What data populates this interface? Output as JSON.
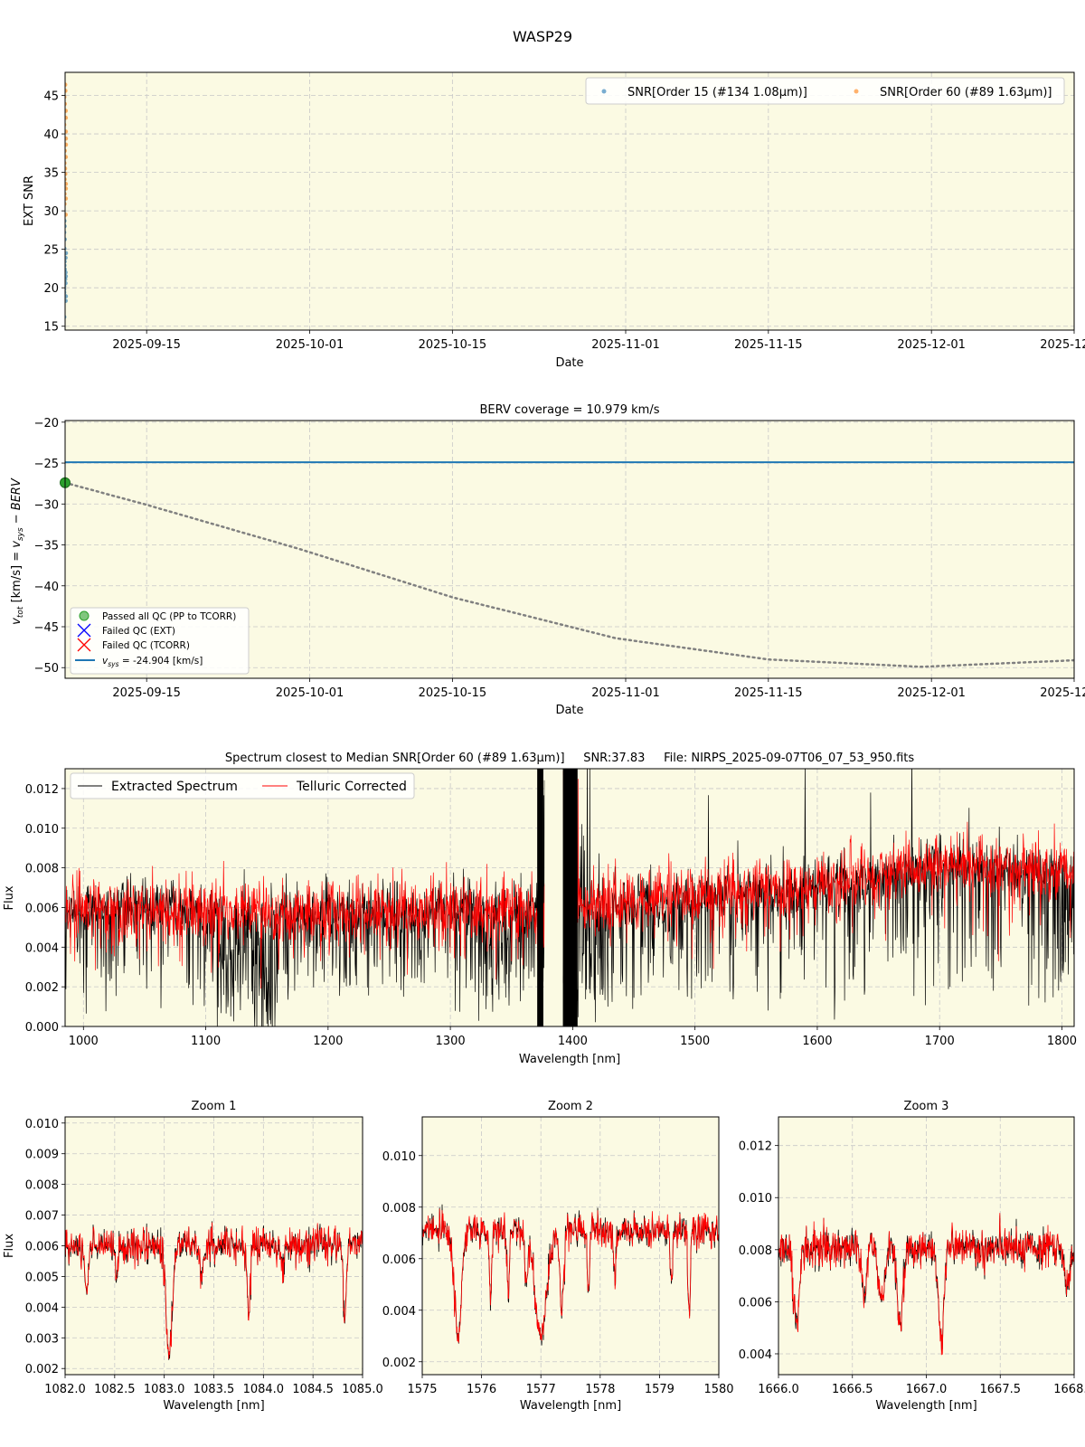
{
  "figure_title": "WASP29",
  "colors": {
    "panel_bg": "#fbfae3",
    "grid": "#c8c8c8",
    "snr_order15": "#1f77b4",
    "snr_order60": "#ff7f0e",
    "vsys_line": "#1f77b4",
    "berv_curve": "#808080",
    "passed_qc": "#2ca02c",
    "failed_ext": "#0000ff",
    "failed_tcorr": "#ff0000",
    "extracted": "#000000",
    "telluric": "#ff0000"
  },
  "chart_data": [
    {
      "type": "scatter",
      "id": "snr",
      "title": "",
      "xlabel": "Date",
      "ylabel": "EXT SNR",
      "x_tick_labels": [
        "2025-09-15",
        "2025-10-01",
        "2025-10-15",
        "2025-11-01",
        "2025-11-15",
        "2025-12-01",
        "2025-12-15"
      ],
      "xlim": [
        "2025-09-07",
        "2025-12-15"
      ],
      "ylim": [
        14.5,
        48
      ],
      "y_ticks": [
        15,
        20,
        25,
        30,
        35,
        40,
        45
      ],
      "legend": [
        "SNR[Order 15 (#134 1.08",
        "μm)]",
        "SNR[Order 60 (#89 1.63",
        "μm)]"
      ],
      "legend_position": "top-right",
      "series": [
        {
          "name": "SNR[Order 15 (#134 1.08μm)]",
          "x_date": "2025-09-07",
          "y": [
            16.2,
            18.3,
            18.9,
            19.4,
            19.8,
            20.2,
            20.6,
            21.1,
            21.5,
            22.0,
            22.4,
            22.9,
            23.4,
            23.9,
            24.5,
            25.1,
            26.3,
            27.2,
            28.0,
            28.7
          ]
        },
        {
          "name": "SNR[Order 60 (#89 1.63μm)]",
          "x_date": "2025-09-07",
          "y": [
            29.5,
            30.9,
            31.6,
            32.2,
            32.9,
            33.5,
            34.1,
            34.8,
            35.5,
            36.2,
            37.0,
            37.8,
            38.6,
            39.4,
            40.3,
            41.2,
            42.1,
            43.0,
            43.9,
            44.8,
            45.6,
            46.4
          ]
        }
      ]
    },
    {
      "type": "line",
      "id": "berv",
      "title": "BERV coverage = 10.979 km/s",
      "xlabel": "Date",
      "ylabel_parts": [
        "v",
        "tot",
        " [km/s] = ",
        "v",
        "sys",
        " − BERV"
      ],
      "x_tick_labels": [
        "2025-09-15",
        "2025-10-01",
        "2025-10-15",
        "2025-11-01",
        "2025-11-15",
        "2025-12-01",
        "2025-12-15"
      ],
      "xlim": [
        "2025-09-07",
        "2025-12-15"
      ],
      "ylim": [
        -51.3,
        -19.8
      ],
      "y_ticks": [
        -20,
        -25,
        -30,
        -35,
        -40,
        -45,
        -50
      ],
      "vsys": -24.904,
      "berv_curve": {
        "x_dates": [
          "2025-09-07",
          "2025-09-15",
          "2025-09-30",
          "2025-10-15",
          "2025-10-31",
          "2025-11-15",
          "2025-11-30",
          "2025-12-15"
        ],
        "y": [
          -27.4,
          -30.1,
          -35.5,
          -41.4,
          -46.4,
          -49.0,
          -49.9,
          -49.1
        ]
      },
      "passed_qc_point": {
        "x_date": "2025-09-07",
        "y": -27.4
      },
      "legend": {
        "passed": "Passed all QC (PP to TCORR)",
        "failed_ext": "Failed QC (EXT)",
        "failed_tcorr": "Failed QC (TCORR)",
        "vsys_v": "v",
        "vsys_sub": "sys",
        "vsys_rest": " = -24.904 [km/s]"
      },
      "legend_position": "bottom-left"
    },
    {
      "type": "line",
      "id": "spectrum",
      "title": "Spectrum closest to Median SNR[Order 60 (#89 1.63μm)]     SNR:37.83     File: NIRPS_2025-09-07T06_07_53_950.fits",
      "xlabel": "Wavelength [nm]",
      "ylabel": "Flux",
      "xlim": [
        985,
        1810
      ],
      "ylim": [
        0.0,
        0.013
      ],
      "x_ticks": [
        1000,
        1100,
        1200,
        1300,
        1400,
        1500,
        1600,
        1700,
        1800
      ],
      "y_ticks": [
        0.0,
        0.002,
        0.004,
        0.006,
        0.008,
        0.01,
        0.012
      ],
      "y_tick_labels": [
        "0.000",
        "0.002",
        "0.004",
        "0.006",
        "0.008",
        "0.010",
        "0.012"
      ],
      "series": [
        {
          "name": "Extracted Spectrum",
          "continuum_x": [
            985,
            1100,
            1200,
            1300,
            1350,
            1420,
            1500,
            1600,
            1700,
            1810
          ],
          "continuum_y": [
            0.006,
            0.0058,
            0.0057,
            0.0059,
            0.006,
            0.0062,
            0.0066,
            0.007,
            0.0082,
            0.0077
          ]
        },
        {
          "name": "Telluric Corrected",
          "continuum_x": [
            985,
            1100,
            1200,
            1300,
            1350,
            1420,
            1500,
            1600,
            1700,
            1810
          ],
          "continuum_y": [
            0.006,
            0.0058,
            0.0057,
            0.0059,
            0.006,
            0.0062,
            0.0066,
            0.007,
            0.0082,
            0.0077
          ]
        }
      ],
      "gap_nm": [
        1377,
        1392
      ],
      "legend_position": "top-left"
    },
    {
      "type": "line",
      "id": "zoom1",
      "title": "Zoom 1",
      "xlabel": "Wavelength [nm]",
      "ylabel": "Flux",
      "xlim": [
        1082.0,
        1085.0
      ],
      "ylim": [
        0.0018,
        0.0102
      ],
      "x_ticks": [
        1082.0,
        1082.5,
        1083.0,
        1083.5,
        1084.0,
        1084.5,
        1085.0
      ],
      "x_tick_labels": [
        "1082.0",
        "1082.5",
        "1083.0",
        "1083.5",
        "1084.0",
        "1084.5",
        "1085.0"
      ],
      "y_ticks": [
        0.002,
        0.003,
        0.004,
        0.005,
        0.006,
        0.007,
        0.008,
        0.009,
        0.01
      ],
      "y_tick_labels": [
        "0.002",
        "0.003",
        "0.004",
        "0.005",
        "0.006",
        "0.007",
        "0.008",
        "0.009",
        "0.010"
      ],
      "continuum": 0.006,
      "lines": [
        {
          "x": 1082.22,
          "depth": 0.0016,
          "w": 0.018
        },
        {
          "x": 1082.52,
          "depth": 0.001,
          "w": 0.015
        },
        {
          "x": 1083.05,
          "depth": 0.0035,
          "w": 0.03
        },
        {
          "x": 1083.38,
          "depth": 0.001,
          "w": 0.02
        },
        {
          "x": 1083.85,
          "depth": 0.0021,
          "w": 0.015
        },
        {
          "x": 1084.2,
          "depth": 0.0008,
          "w": 0.015
        },
        {
          "x": 1084.82,
          "depth": 0.0024,
          "w": 0.015
        }
      ]
    },
    {
      "type": "line",
      "id": "zoom2",
      "title": "Zoom 2",
      "xlabel": "Wavelength [nm]",
      "ylabel": "",
      "xlim": [
        1575,
        1580
      ],
      "ylim": [
        0.0015,
        0.0115
      ],
      "x_ticks": [
        1575,
        1576,
        1577,
        1578,
        1579,
        1580
      ],
      "x_tick_labels": [
        "1575",
        "1576",
        "1577",
        "1578",
        "1579",
        "1580"
      ],
      "y_ticks": [
        0.002,
        0.004,
        0.006,
        0.008,
        0.01
      ],
      "y_tick_labels": [
        "0.002",
        "0.004",
        "0.006",
        "0.008",
        "0.010"
      ],
      "continuum": 0.0071,
      "lines": [
        {
          "x": 1575.6,
          "depth": 0.004,
          "w": 0.06
        },
        {
          "x": 1576.15,
          "depth": 0.0028,
          "w": 0.02
        },
        {
          "x": 1576.45,
          "depth": 0.0025,
          "w": 0.02
        },
        {
          "x": 1576.75,
          "depth": 0.0022,
          "w": 0.02
        },
        {
          "x": 1577.0,
          "depth": 0.004,
          "w": 0.1
        },
        {
          "x": 1577.35,
          "depth": 0.0032,
          "w": 0.03
        },
        {
          "x": 1577.8,
          "depth": 0.0025,
          "w": 0.02
        },
        {
          "x": 1578.25,
          "depth": 0.002,
          "w": 0.02
        },
        {
          "x": 1579.2,
          "depth": 0.002,
          "w": 0.02
        },
        {
          "x": 1579.5,
          "depth": 0.0032,
          "w": 0.02
        }
      ]
    },
    {
      "type": "line",
      "id": "zoom3",
      "title": "Zoom 3",
      "xlabel": "Wavelength [nm]",
      "ylabel": "",
      "xlim": [
        1666.0,
        1668.0
      ],
      "ylim": [
        0.0032,
        0.0131
      ],
      "x_ticks": [
        1666.0,
        1666.5,
        1667.0,
        1667.5,
        1668.0
      ],
      "x_tick_labels": [
        "1666.0",
        "1666.5",
        "1667.0",
        "1667.5",
        "1668.0"
      ],
      "y_ticks": [
        0.004,
        0.006,
        0.008,
        0.01,
        0.012
      ],
      "y_tick_labels": [
        "0.004",
        "0.006",
        "0.008",
        "0.010",
        "0.012"
      ],
      "continuum": 0.0081,
      "lines": [
        {
          "x": 1666.12,
          "depth": 0.003,
          "w": 0.02
        },
        {
          "x": 1666.58,
          "depth": 0.002,
          "w": 0.015
        },
        {
          "x": 1666.7,
          "depth": 0.002,
          "w": 0.02
        },
        {
          "x": 1666.82,
          "depth": 0.0028,
          "w": 0.02
        },
        {
          "x": 1667.1,
          "depth": 0.0036,
          "w": 0.018
        },
        {
          "x": 1667.95,
          "depth": 0.0015,
          "w": 0.02
        }
      ]
    }
  ]
}
